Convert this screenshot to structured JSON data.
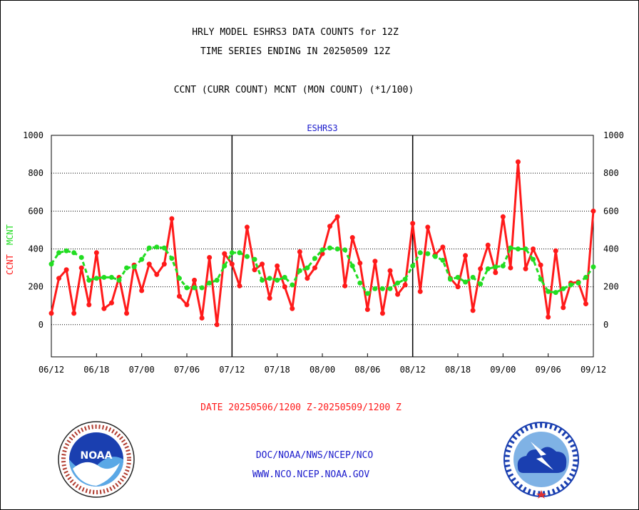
{
  "header": {
    "line1": "HRLY MODEL ESHRS3 DATA COUNTS for 12Z",
    "line2": "TIME SERIES ENDING IN 20250509 12Z",
    "line3": "CCNT (CURR COUNT) MCNT (MON COUNT) (*1/100)"
  },
  "axis_labels": {
    "left_ccnt": "CCNT",
    "left_mcnt": "MCNT"
  },
  "date_range": "DATE 20250506/1200 Z-20250509/1200 Z",
  "footer": {
    "org": "DOC/NOAA/NWS/NCEP/NCO",
    "url": "WWW.NCO.NCEP.NOAA.GOV"
  },
  "logos": {
    "left": "noaa-logo",
    "right": "national-weather-service-logo"
  },
  "colors": {
    "ccnt": "#ff1a1a",
    "mcnt": "#22dd22",
    "panel_title": "#1a1acc",
    "date": "#ff1a1a",
    "footer": "#1a1acc"
  },
  "chart_data": {
    "type": "line",
    "title": "ESHRS3",
    "panels": [
      "05/06 12Z-05/07 12Z",
      "05/07 12Z-05/08 12Z",
      "05/08 12Z-05/09 12Z"
    ],
    "x_tick_labels": [
      "06/12",
      "06/18",
      "07/00",
      "07/06",
      "07/12",
      "07/18",
      "08/00",
      "08/06",
      "08/12",
      "08/18",
      "09/00",
      "09/06",
      "09/12"
    ],
    "ylim": [
      -170,
      1000
    ],
    "y_ticks": [
      0,
      200,
      400,
      600,
      800,
      1000
    ],
    "grid": "horizontal dotted",
    "series": [
      {
        "name": "CCNT",
        "color": "#ff1a1a",
        "values": [
          60,
          245,
          290,
          60,
          300,
          105,
          380,
          85,
          115,
          250,
          60,
          315,
          180,
          320,
          265,
          320,
          560,
          150,
          105,
          235,
          35,
          355,
          0,
          375,
          320,
          205,
          515,
          290,
          320,
          140,
          310,
          200,
          85,
          385,
          245,
          300,
          375,
          520,
          570,
          205,
          460,
          325,
          80,
          335,
          60,
          285,
          160,
          210,
          535,
          175,
          515,
          370,
          410,
          245,
          200,
          365,
          75,
          295,
          420,
          275,
          570,
          300,
          860,
          295,
          400,
          315,
          40,
          390,
          90,
          220,
          225,
          110,
          600
        ]
      },
      {
        "name": "MCNT",
        "color": "#22dd22",
        "values": [
          320,
          380,
          390,
          380,
          355,
          235,
          245,
          250,
          250,
          235,
          300,
          305,
          345,
          405,
          410,
          405,
          350,
          245,
          195,
          195,
          195,
          220,
          235,
          310,
          380,
          380,
          360,
          345,
          235,
          245,
          235,
          250,
          210,
          285,
          300,
          350,
          395,
          405,
          400,
          395,
          310,
          220,
          165,
          190,
          190,
          190,
          220,
          240,
          310,
          380,
          375,
          360,
          340,
          240,
          250,
          225,
          250,
          215,
          295,
          305,
          310,
          405,
          400,
          400,
          345,
          240,
          175,
          170,
          190,
          210,
          220,
          250,
          305
        ]
      }
    ]
  }
}
